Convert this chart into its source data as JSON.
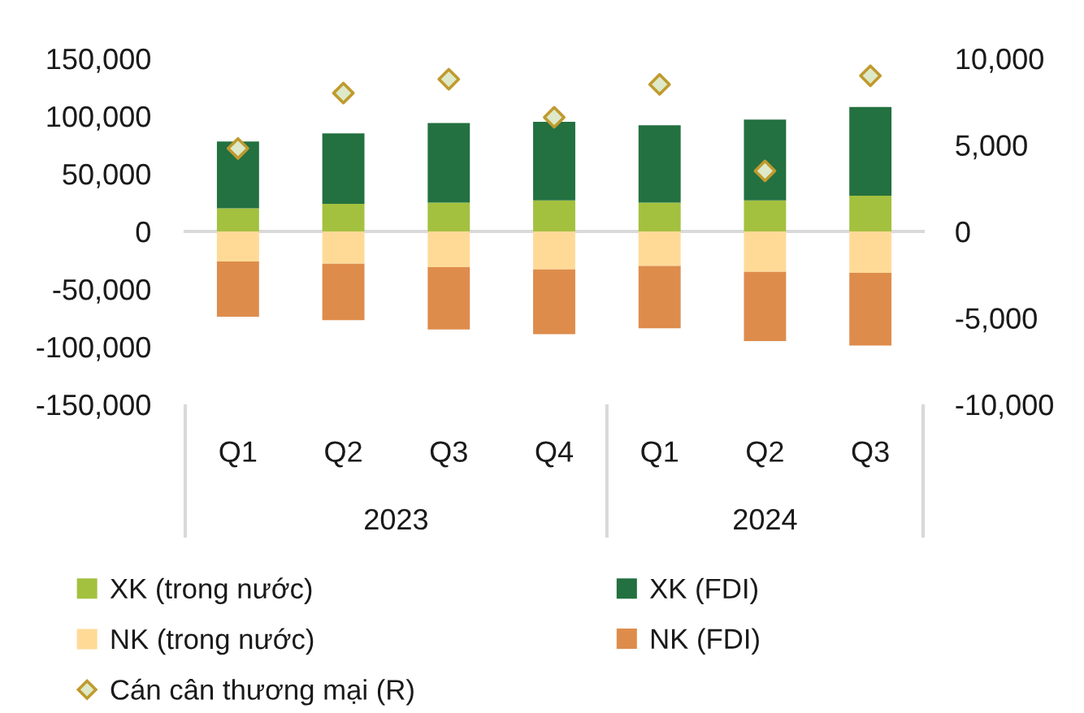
{
  "chart_data": {
    "type": "bar",
    "stacked": true,
    "categories": [
      "Q1",
      "Q2",
      "Q3",
      "Q4",
      "Q1",
      "Q2",
      "Q3"
    ],
    "series": [
      {
        "name": "XK (trong nước)",
        "color": "#a3c13f",
        "values": [
          20000,
          24000,
          25000,
          27000,
          25000,
          27000,
          31000
        ]
      },
      {
        "name": "XK (FDI)",
        "color": "#237040",
        "values": [
          58000,
          61000,
          69000,
          68000,
          67000,
          70000,
          77000
        ]
      },
      {
        "name": "NK (trong nước)",
        "color": "#ffda97",
        "values": [
          -26000,
          -28000,
          -31000,
          -33000,
          -30000,
          -35000,
          -36000
        ]
      },
      {
        "name": "NK (FDI)",
        "color": "#de8c4c",
        "values": [
          -48000,
          -49000,
          -54000,
          -56000,
          -54000,
          -60000,
          -63000
        ]
      },
      {
        "name": "Cán cân thương mại (R)",
        "type": "scatter",
        "axis": "y2",
        "marker": "diamond",
        "color": "#c09a2e",
        "values": [
          4800,
          8000,
          8800,
          6600,
          8500,
          3500,
          9000
        ]
      }
    ],
    "ylim": [
      -150000,
      150000
    ],
    "yticks": [
      {
        "value": -150000,
        "label": "-150,000"
      },
      {
        "value": -100000,
        "label": "-100,000"
      },
      {
        "value": -50000,
        "label": "-50,000"
      },
      0,
      {
        "value": 50000,
        "label": "50,000"
      },
      {
        "value": 100000,
        "label": "100,000"
      },
      {
        "value": 150000,
        "label": "150,000"
      }
    ],
    "y2lim": [
      -10000,
      10000
    ],
    "y2ticks": [
      {
        "value": -10000,
        "label": "-10,000"
      },
      {
        "value": -5000,
        "label": "-5,000"
      },
      0,
      {
        "value": 5000,
        "label": "5,000"
      },
      {
        "value": 10000,
        "label": "10,000"
      }
    ],
    "legend": "bottom",
    "annotations": [
      "2023",
      "2024"
    ]
  }
}
